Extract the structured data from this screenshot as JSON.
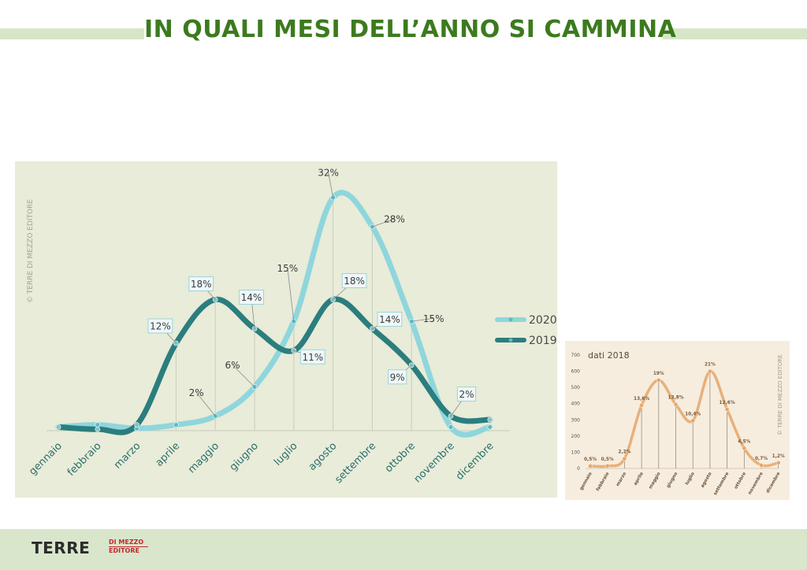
{
  "title": "IN QUALI MESI DELL’ANNO SI CAMMINA",
  "colors": {
    "series_2020": "#8fd6dc",
    "series_2019": "#2c7d7e",
    "mini_line": "#e8b07a",
    "title": "#3c7a1e",
    "axis_labels": "#2c6e6e"
  },
  "main_copyright": "© TERRE DI MEZZO EDITORE",
  "logo": {
    "main": "TERRE",
    "small_top": "DI MEZZO",
    "small_bottom": "EDITORE"
  },
  "chart_data": [
    {
      "type": "line",
      "categories": [
        "gennaio",
        "febbraio",
        "marzo",
        "aprile",
        "maggio",
        "giugno",
        "luglio",
        "agosto",
        "settembre",
        "ottobre",
        "novembre",
        "dicembre"
      ],
      "series": [
        {
          "name": "2020",
          "values": [
            0.5,
            0.8,
            0.3,
            0.8,
            2,
            6,
            15,
            32,
            28,
            15,
            0.5,
            0.5
          ],
          "labels": [
            "",
            "",
            "",
            "",
            "2%",
            "6%",
            "15%",
            "32%",
            "28%",
            "15%",
            "",
            ""
          ]
        },
        {
          "name": "2019",
          "values": [
            0.5,
            0.2,
            0.8,
            12,
            18,
            14,
            11,
            18,
            14,
            9,
            2,
            1.5
          ],
          "labels": [
            "",
            "",
            "",
            "12%",
            "18%",
            "14%",
            "11%",
            "18%",
            "14%",
            "9%",
            "2%",
            ""
          ]
        }
      ],
      "legend": "right"
    },
    {
      "type": "line",
      "title": "dati 2018",
      "categories": [
        "gennaio",
        "febbraio",
        "marzo",
        "aprile",
        "maggio",
        "giugno",
        "luglio",
        "agosto",
        "settembre",
        "ottobre",
        "novembre",
        "dicembre"
      ],
      "yticks": [
        "0",
        "100",
        "200",
        "300",
        "400",
        "500",
        "600",
        "700"
      ],
      "ylim": [
        0,
        700
      ],
      "values": [
        15,
        15,
        60,
        390,
        545,
        395,
        295,
        600,
        365,
        125,
        20,
        35
      ],
      "labels": [
        "0,5%",
        "0,5%",
        "2,2%",
        "13,6%",
        "19%",
        "13,8%",
        "10,4%",
        "21%",
        "12,6%",
        "4,5%",
        "0,7%",
        "1,2%"
      ],
      "copyright": "© TERRE DI MEZZO EDITORE"
    }
  ]
}
